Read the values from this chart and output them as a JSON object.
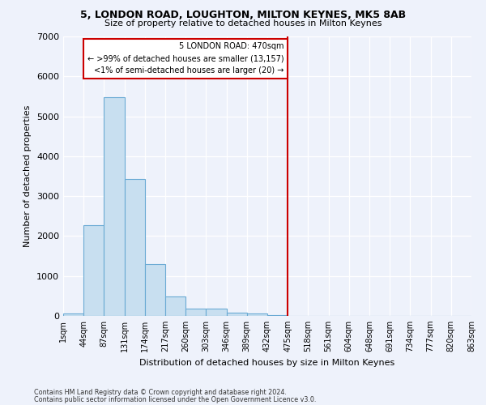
{
  "title": "5, LONDON ROAD, LOUGHTON, MILTON KEYNES, MK5 8AB",
  "subtitle": "Size of property relative to detached houses in Milton Keynes",
  "xlabel": "Distribution of detached houses by size in Milton Keynes",
  "ylabel": "Number of detached properties",
  "footer_line1": "Contains HM Land Registry data © Crown copyright and database right 2024.",
  "footer_line2": "Contains public sector information licensed under the Open Government Licence v3.0.",
  "bin_labels": [
    "1sqm",
    "44sqm",
    "87sqm",
    "131sqm",
    "174sqm",
    "217sqm",
    "260sqm",
    "303sqm",
    "346sqm",
    "389sqm",
    "432sqm",
    "475sqm",
    "518sqm",
    "561sqm",
    "604sqm",
    "648sqm",
    "691sqm",
    "734sqm",
    "777sqm",
    "820sqm",
    "863sqm"
  ],
  "bar_values": [
    70,
    2280,
    5480,
    3420,
    1300,
    490,
    190,
    175,
    90,
    55,
    30,
    0,
    0,
    0,
    0,
    0,
    0,
    0,
    0,
    0
  ],
  "bar_color": "#c8dff0",
  "bar_edge_color": "#6aaad4",
  "property_line_x": 11,
  "property_label": "5 LONDON ROAD: 470sqm",
  "annotation_line1": "← >99% of detached houses are smaller (13,157)",
  "annotation_line2": "<1% of semi-detached houses are larger (20) →",
  "annotation_box_color": "#cc0000",
  "vline_color": "#cc0000",
  "ylim": [
    0,
    7000
  ],
  "yticks": [
    0,
    1000,
    2000,
    3000,
    4000,
    5000,
    6000,
    7000
  ],
  "background_color": "#eef2fb",
  "grid_color": "#ffffff",
  "num_bins": 20
}
